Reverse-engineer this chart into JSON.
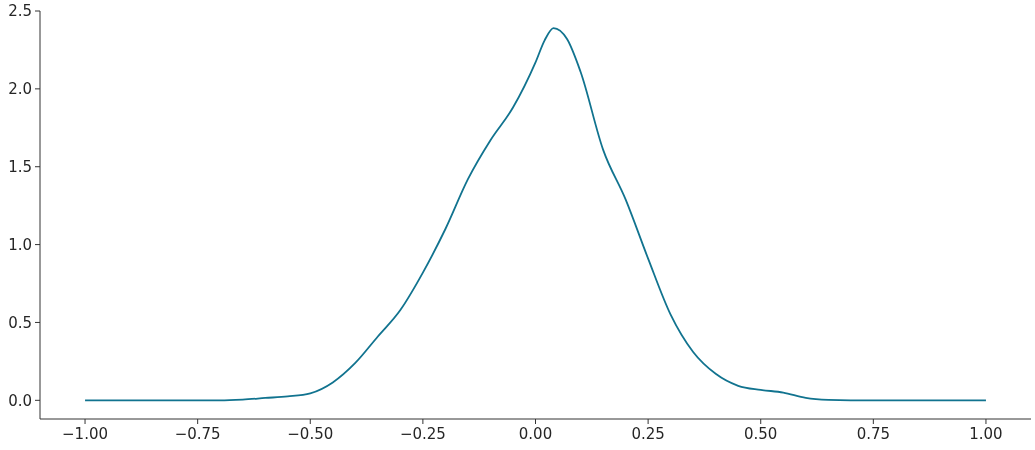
{
  "chart_data": {
    "type": "line",
    "x": [
      -1.0,
      -0.9,
      -0.8,
      -0.75,
      -0.7,
      -0.65,
      -0.6,
      -0.55,
      -0.5,
      -0.45,
      -0.4,
      -0.35,
      -0.3,
      -0.25,
      -0.2,
      -0.15,
      -0.1,
      -0.05,
      0.0,
      0.02,
      0.04,
      0.07,
      0.1,
      0.15,
      0.2,
      0.25,
      0.3,
      0.35,
      0.4,
      0.45,
      0.5,
      0.55,
      0.6,
      0.65,
      0.7,
      0.8,
      0.9,
      1.0
    ],
    "values": [
      0,
      0,
      0,
      0,
      0.0,
      0.005,
      0.015,
      0.025,
      0.045,
      0.115,
      0.24,
      0.41,
      0.58,
      0.82,
      1.1,
      1.42,
      1.67,
      1.88,
      2.17,
      2.31,
      2.39,
      2.32,
      2.11,
      1.61,
      1.29,
      0.91,
      0.55,
      0.31,
      0.17,
      0.093,
      0.067,
      0.05,
      0.016,
      0.003,
      0,
      0,
      0,
      0
    ],
    "color": "#11738f",
    "xlim": [
      -1.1,
      1.1
    ],
    "ylim": [
      -0.12,
      2.5
    ],
    "xticks": [
      {
        "value": -1.0,
        "label": "−1.00"
      },
      {
        "value": -0.75,
        "label": "−0.75"
      },
      {
        "value": -0.5,
        "label": "−0.50"
      },
      {
        "value": -0.25,
        "label": "−0.25"
      },
      {
        "value": 0,
        "label": "0.00"
      },
      0.25,
      {
        "value": 0.5,
        "label": "0.50"
      },
      0.75,
      {
        "value": 1.0,
        "label": "1.00"
      }
    ],
    "yticks": [
      {
        "value": 0,
        "label": "0.0"
      },
      0.5,
      {
        "value": 1.0,
        "label": "1.0"
      },
      1.5,
      {
        "value": 2.0,
        "label": "2.0"
      },
      2.5
    ]
  }
}
